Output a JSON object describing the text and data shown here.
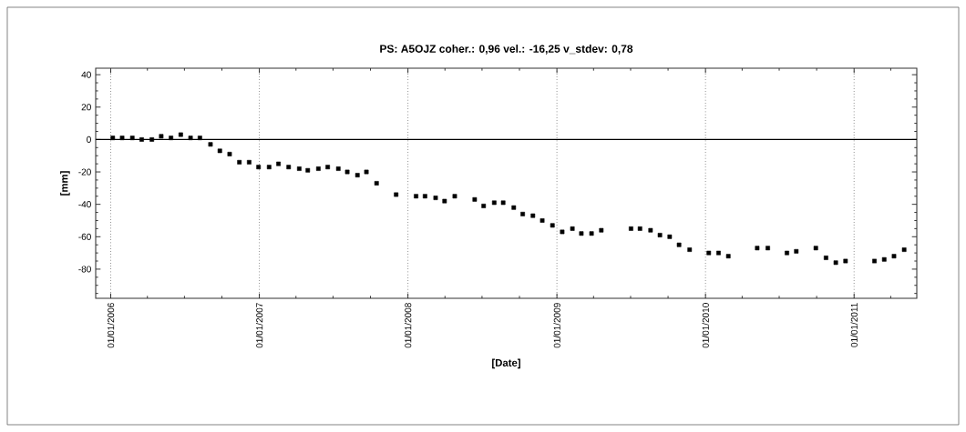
{
  "chart_data": {
    "type": "scatter",
    "title": "PS: A5OJZ coher.: 0,96 vel.: -16,25 v_stdev: 0,78",
    "xlabel": "[Date]",
    "ylabel": "[mm]",
    "x": [
      "2006-01-06",
      "2006-01-29",
      "2006-02-23",
      "2006-03-18",
      "2006-04-12",
      "2006-05-05",
      "2006-05-29",
      "2006-06-22",
      "2006-07-16",
      "2006-08-08",
      "2006-09-03",
      "2006-09-26",
      "2006-10-20",
      "2006-11-13",
      "2006-12-07",
      "2006-12-30",
      "2007-01-25",
      "2007-02-17",
      "2007-03-14",
      "2007-04-09",
      "2007-04-30",
      "2007-05-26",
      "2007-06-18",
      "2007-07-14",
      "2007-08-05",
      "2007-08-30",
      "2007-09-21",
      "2007-10-16",
      "2007-12-03",
      "2008-01-21",
      "2008-02-12",
      "2008-03-09",
      "2008-03-31",
      "2008-04-25",
      "2008-06-13",
      "2008-07-05",
      "2008-07-31",
      "2008-08-22",
      "2008-09-17",
      "2008-10-09",
      "2008-11-03",
      "2008-11-26",
      "2008-12-21",
      "2009-01-14",
      "2009-02-08",
      "2009-03-02",
      "2009-03-27",
      "2009-04-20",
      "2009-07-02",
      "2009-07-24",
      "2009-08-19",
      "2009-09-11",
      "2009-10-05",
      "2009-10-28",
      "2009-11-23",
      "2010-01-09",
      "2010-02-02",
      "2010-02-26",
      "2010-05-08",
      "2010-06-03",
      "2010-07-20",
      "2010-08-12",
      "2010-09-29",
      "2010-10-24",
      "2010-11-17",
      "2010-12-11",
      "2011-02-20",
      "2011-03-16",
      "2011-04-09",
      "2011-05-04"
    ],
    "values": [
      1,
      1,
      1,
      0,
      0,
      2,
      1,
      3,
      1,
      1,
      -3,
      -7,
      -9,
      -14,
      -14,
      -17,
      -17,
      -15,
      -17,
      -18,
      -19,
      -18,
      -17,
      -18,
      -20,
      -22,
      -20,
      -27,
      -34,
      -35,
      -35,
      -36,
      -38,
      -35,
      -37,
      -41,
      -39,
      -39,
      -42,
      -46,
      -47,
      -50,
      -53,
      -57,
      -55,
      -58,
      -58,
      -56,
      -55,
      -55,
      -56,
      -59,
      -60,
      -65,
      -68,
      -70,
      -70,
      -72,
      -67,
      -67,
      -70,
      -69,
      -67,
      -73,
      -76,
      -75,
      -75,
      -74,
      -72,
      -68
    ],
    "color": "#000000",
    "marker": "square",
    "xlim": [
      "2005-11-25",
      "2011-06-04"
    ],
    "xticks": [
      {
        "value": "2006-01-01",
        "label": "01/01/2006"
      },
      {
        "value": "2006-04-01",
        "label": null
      },
      {
        "value": "2006-07-01",
        "label": null
      },
      {
        "value": "2006-10-01",
        "label": null
      },
      {
        "value": "2007-01-01",
        "label": "01/01/2007"
      },
      {
        "value": "2007-04-01",
        "label": null
      },
      {
        "value": "2007-07-01",
        "label": null
      },
      {
        "value": "2007-10-01",
        "label": null
      },
      {
        "value": "2008-01-01",
        "label": "01/01/2008"
      },
      {
        "value": "2008-04-01",
        "label": null
      },
      {
        "value": "2008-07-01",
        "label": null
      },
      {
        "value": "2008-10-01",
        "label": null
      },
      {
        "value": "2009-01-01",
        "label": "01/01/2009"
      },
      {
        "value": "2009-04-01",
        "label": null
      },
      {
        "value": "2009-07-01",
        "label": null
      },
      {
        "value": "2009-10-01",
        "label": null
      },
      {
        "value": "2010-01-01",
        "label": "01/01/2010"
      },
      {
        "value": "2010-04-01",
        "label": null
      },
      {
        "value": "2010-07-01",
        "label": null
      },
      {
        "value": "2010-10-01",
        "label": null
      },
      {
        "value": "2011-01-01",
        "label": "01/01/2011"
      },
      {
        "value": "2011-04-01",
        "label": null
      }
    ],
    "ylim": [
      -98,
      44
    ],
    "yticks": [
      {
        "value": -95,
        "label": null
      },
      {
        "value": -90,
        "label": null
      },
      {
        "value": -85,
        "label": null
      },
      -80,
      {
        "value": -75,
        "label": null
      },
      {
        "value": -70,
        "label": null
      },
      {
        "value": -65,
        "label": null
      },
      -60,
      {
        "value": -55,
        "label": null
      },
      {
        "value": -50,
        "label": null
      },
      {
        "value": -45,
        "label": null
      },
      -40,
      {
        "value": -35,
        "label": null
      },
      {
        "value": -30,
        "label": null
      },
      {
        "value": -25,
        "label": null
      },
      -20,
      {
        "value": -15,
        "label": null
      },
      {
        "value": -10,
        "label": null
      },
      {
        "value": -5,
        "label": null
      },
      0,
      {
        "value": 5,
        "label": null
      },
      {
        "value": 10,
        "label": null
      },
      {
        "value": 15,
        "label": null
      },
      20,
      {
        "value": 25,
        "label": null
      },
      {
        "value": 30,
        "label": null
      },
      {
        "value": 35,
        "label": null
      },
      40
    ],
    "grid": "x",
    "ref_lines": [
      {
        "axis": "y",
        "value": 0,
        "color": "#000000"
      }
    ]
  }
}
